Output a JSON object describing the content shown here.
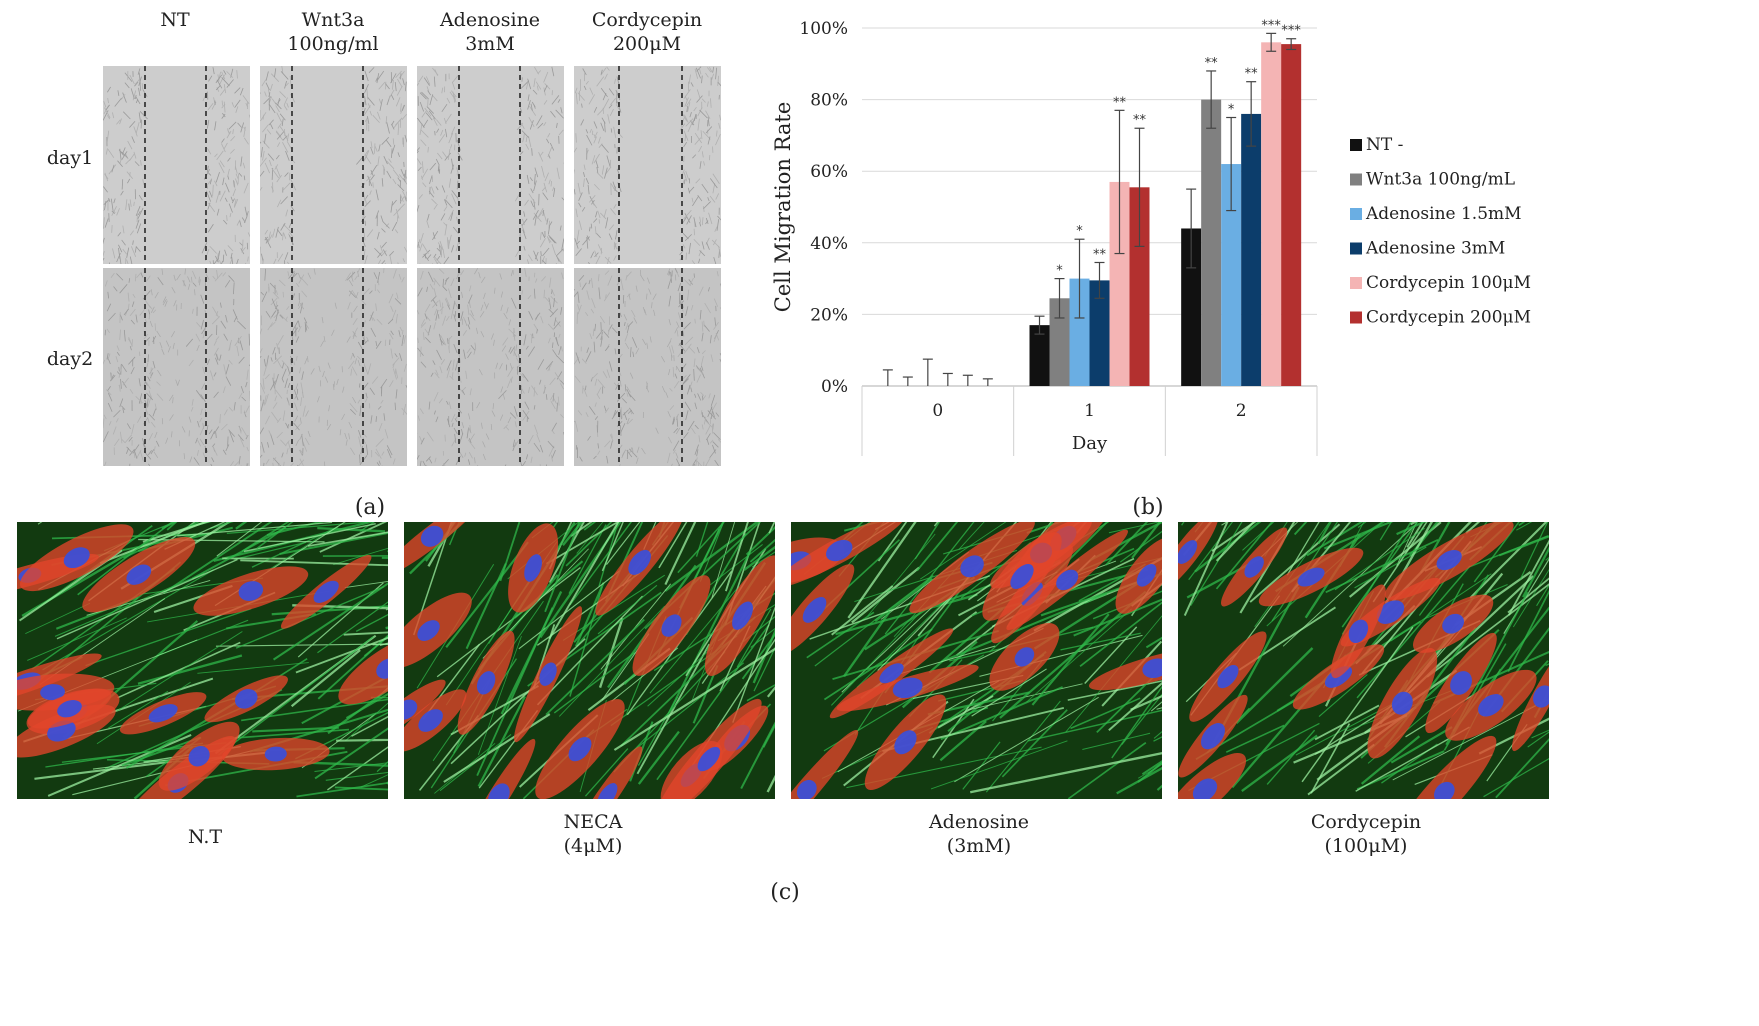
{
  "panel_a": {
    "letter": "(a)",
    "columns": [
      {
        "line1": "NT",
        "line2": ""
      },
      {
        "line1": "Wnt3a",
        "line2": "100ng/ml"
      },
      {
        "line1": "Adenosine",
        "line2": "3mM"
      },
      {
        "line1": "Cordycepin",
        "line2": "200μM"
      }
    ],
    "rows": [
      "day1",
      "day2"
    ]
  },
  "panel_b": {
    "letter": "(b)"
  },
  "panel_c": {
    "letter": "(c)",
    "images": [
      {
        "line1": "N.T",
        "line2": ""
      },
      {
        "line1": "NECA",
        "line2": "(4μM)"
      },
      {
        "line1": "Adenosine",
        "line2": "(3mM)"
      },
      {
        "line1": "Cordycepin",
        "line2": "(100μM)"
      }
    ]
  },
  "chart_data": {
    "type": "bar",
    "title": "",
    "xlabel": "Day",
    "ylabel": "Cell Migration Rate",
    "categories": [
      "0",
      "1",
      "2"
    ],
    "ylim": [
      0,
      100
    ],
    "yticks": [
      "0%",
      "20%",
      "40%",
      "60%",
      "80%",
      "100%"
    ],
    "legend_position": "right",
    "series": [
      {
        "name": "NT -",
        "color": "#111111",
        "values": [
          0,
          17,
          44
        ],
        "errors": [
          4.5,
          2.5,
          11
        ],
        "sig": [
          "",
          "",
          ""
        ]
      },
      {
        "name": "Wnt3a 100ng/mL",
        "color": "#808080",
        "values": [
          0,
          24.5,
          80
        ],
        "errors": [
          2.5,
          5.5,
          8
        ],
        "sig": [
          "",
          "*",
          "**"
        ]
      },
      {
        "name": "Adenosine 1.5mM",
        "color": "#6aaee3",
        "values": [
          0,
          30,
          62
        ],
        "errors": [
          7.5,
          11,
          13
        ],
        "sig": [
          "",
          "*",
          "*"
        ]
      },
      {
        "name": "Adenosine 3mM",
        "color": "#0c3d6b",
        "values": [
          0,
          29.5,
          76
        ],
        "errors": [
          3.5,
          5,
          9
        ],
        "sig": [
          "",
          "**",
          "**"
        ]
      },
      {
        "name": "Cordycepin 100μM",
        "color": "#f4b4b4",
        "values": [
          0,
          57,
          96
        ],
        "errors": [
          3,
          20,
          2.5
        ],
        "sig": [
          "",
          "**",
          "***"
        ]
      },
      {
        "name": "Cordycepin 200μM",
        "color": "#b3302f",
        "values": [
          0,
          55.5,
          95.5
        ],
        "errors": [
          2,
          16.5,
          1.5
        ],
        "sig": [
          "",
          "**",
          "***"
        ]
      }
    ]
  }
}
